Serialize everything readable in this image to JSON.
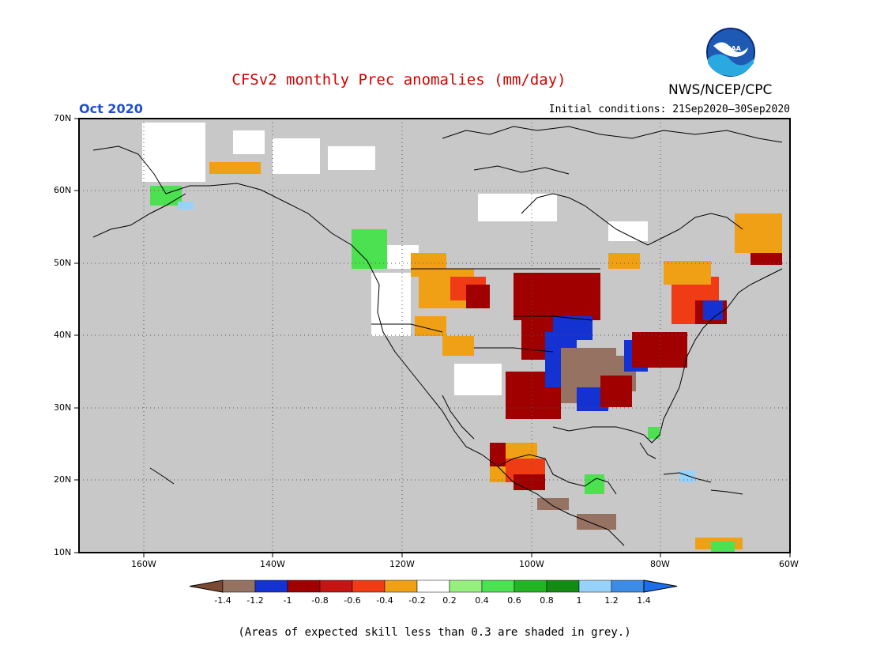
{
  "header": {
    "title": "CFSv2 monthly Prec anomalies (mm/day)",
    "agency": "NWS/NCEP/CPC",
    "logo_text": "NOAA",
    "period": "Oct 2020",
    "initial_conditions": "Initial conditions: 21Sep2020–30Sep2020"
  },
  "map": {
    "lat_labels": [
      "70N",
      "60N",
      "50N",
      "40N",
      "30N",
      "20N",
      "10N"
    ],
    "lon_labels": [
      "160W",
      "140W",
      "120W",
      "100W",
      "80W",
      "60W"
    ],
    "lat_range": [
      10,
      70
    ],
    "lon_range": [
      -170,
      -60
    ],
    "grid": "dotted",
    "mask_color": "#c8c8c8",
    "land_outline_color": "#000000"
  },
  "colorbar": {
    "labels": [
      "-1.4",
      "-1.2",
      "-1",
      "-0.8",
      "-0.6",
      "-0.4",
      "-0.2",
      "0.2",
      "0.4",
      "0.6",
      "0.8",
      "1",
      "1.2",
      "1.4"
    ],
    "colors": [
      "#7b4a32",
      "#967262",
      "#1432d2",
      "#a00000",
      "#c41414",
      "#f03c14",
      "#f0a014",
      "#ffffff",
      "#96f07d",
      "#4be150",
      "#23b423",
      "#148c14",
      "#96d2fa",
      "#3c8ce6",
      "#1e6eeb"
    ]
  },
  "footnote": "(Areas of expected skill less than 0.3 are shaded in grey.)"
}
